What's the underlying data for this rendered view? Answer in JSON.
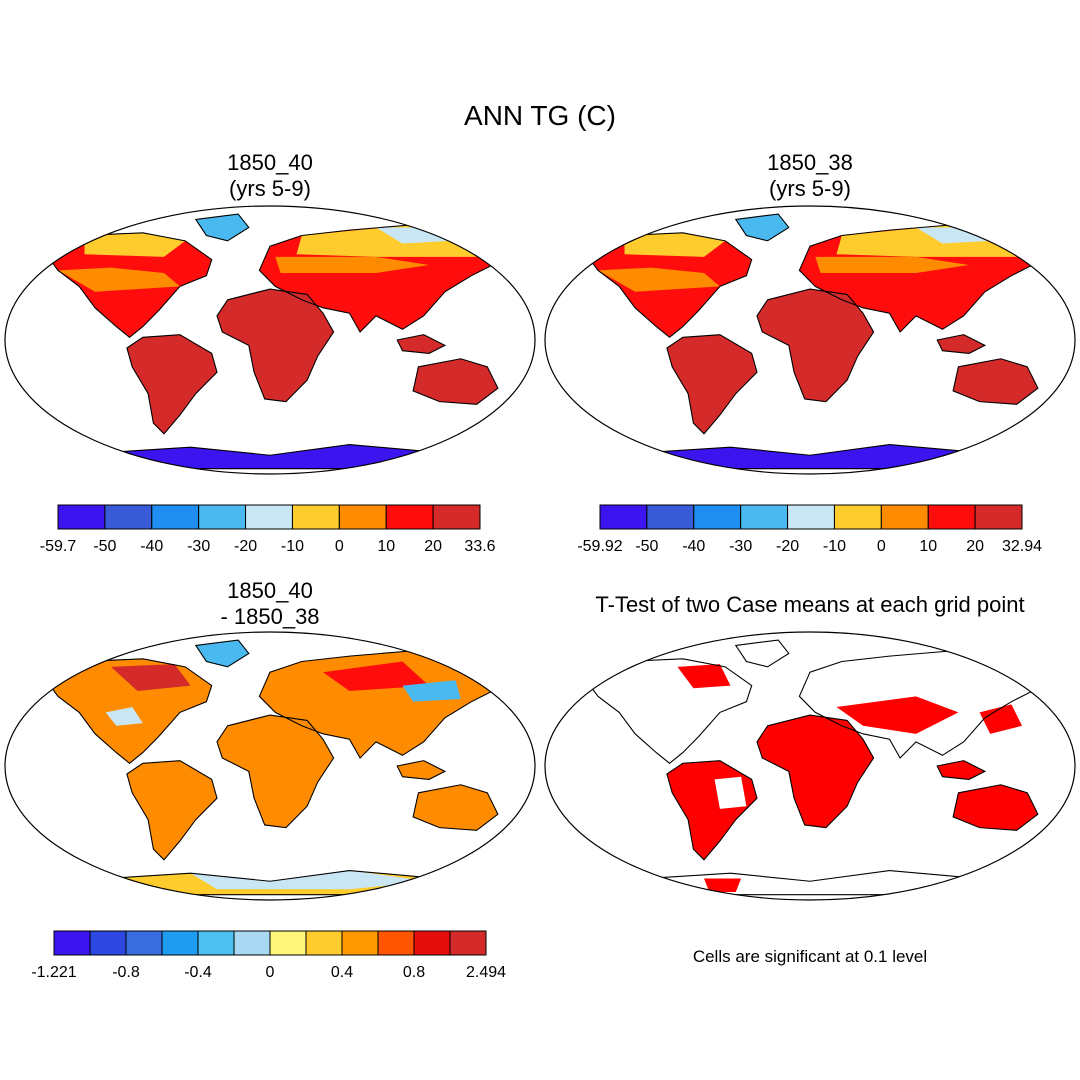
{
  "main_title": "ANN TG (C)",
  "panels": [
    {
      "id": "case1",
      "title_line1": "1850_40",
      "title_line2": "(yrs 5-9)",
      "colorbar": {
        "labels": [
          "-59.7",
          "-50",
          "-40",
          "-30",
          "-20",
          "-10",
          "0",
          "10",
          "20",
          "33.6"
        ],
        "colors": [
          "#3b14f0",
          "#3a5bd8",
          "#1e8ff0",
          "#4ab9ef",
          "#c9e6f4",
          "#ffcc2e",
          "#ff8c00",
          "#ff0d0d",
          "#d42a2a"
        ]
      }
    },
    {
      "id": "case2",
      "title_line1": "1850_38",
      "title_line2": "(yrs 5-9)",
      "colorbar": {
        "labels": [
          "-59.92",
          "-50",
          "-40",
          "-30",
          "-20",
          "-10",
          "0",
          "10",
          "20",
          "32.94"
        ],
        "colors": [
          "#3b14f0",
          "#3a5bd8",
          "#1e8ff0",
          "#4ab9ef",
          "#c9e6f4",
          "#ffcc2e",
          "#ff8c00",
          "#ff0d0d",
          "#d42a2a"
        ]
      }
    },
    {
      "id": "diff",
      "title_line1": "1850_40",
      "title_line2": "- 1850_38",
      "colorbar": {
        "labels": [
          "-1.221",
          "-0.8",
          "-0.4",
          "0",
          "0.4",
          "0.8",
          "2.494"
        ],
        "colors": [
          "#3b14f0",
          "#2c48e0",
          "#3a6ee0",
          "#1e9cf0",
          "#4cc0ef",
          "#a9d9f2",
          "#fff57a",
          "#ffcc2e",
          "#ff9900",
          "#ff5500",
          "#e60d0d",
          "#d42a2a"
        ]
      }
    },
    {
      "id": "ttest",
      "title_line1": "T-Test of two Case means at each grid point",
      "note": "Cells are significant at 0.1 level"
    }
  ],
  "colors": {
    "land_warm": "#d42a2a",
    "land_hot": "#ff0d0d",
    "land_orange": "#ff8c00",
    "land_yellow": "#ffcc2e",
    "ice_pale": "#c9e6f4",
    "ice_blue": "#4ab9ef",
    "ice_deep": "#3b14f0",
    "significant": "#ff0000"
  }
}
